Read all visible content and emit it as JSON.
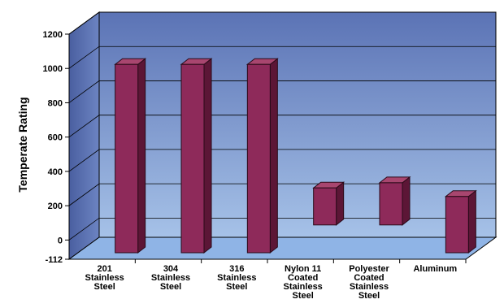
{
  "chart_data": {
    "type": "bar",
    "title": "",
    "xlabel": "",
    "ylabel": "Temperate Rating",
    "categories": [
      [
        "201",
        "Stainless",
        "Steel"
      ],
      [
        "304",
        "Stainless",
        "Steel"
      ],
      [
        "316",
        "Stainless",
        "Steel"
      ],
      [
        "Nylon 11",
        "Coated",
        "Stainless",
        "Steel"
      ],
      [
        "Polyester",
        "Coated",
        "Stainless",
        "Steel"
      ],
      [
        "Aluminum"
      ]
    ],
    "series": [
      {
        "low": [
          -112,
          -112,
          -112,
          50,
          50,
          -112
        ],
        "high": [
          1090,
          1090,
          1090,
          370,
          400,
          320
        ]
      }
    ],
    "yticks": [
      "-112",
      "0",
      "200",
      "400",
      "600",
      "800",
      "1000",
      "1200"
    ],
    "ylim": [
      -112,
      1200
    ],
    "grid": true,
    "legend": "none",
    "colors": {
      "bar_front": "#8e2a5a",
      "bar_top": "#a8466f",
      "bar_side": "#5c1636",
      "bar_outline": "#2a0a18",
      "wall_top": "#5b73b5",
      "wall_bottom": "#a6c2e8",
      "floor": "#8fb4e6"
    }
  }
}
